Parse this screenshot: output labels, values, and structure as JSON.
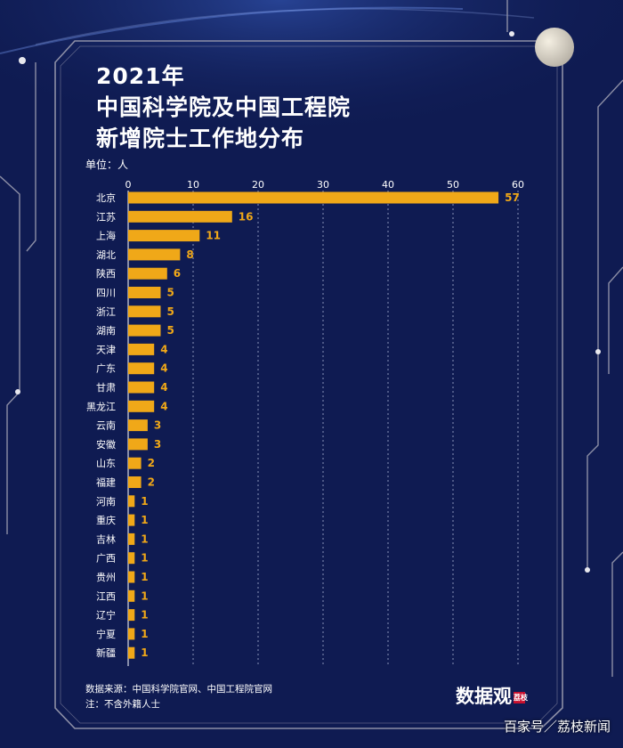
{
  "title_lines": [
    "2021年",
    "中国科学院及中国工程院",
    "新增院士工作地分布"
  ],
  "unit_label": "单位：人",
  "source_line": "数据来源：中国科学院官网、中国工程院官网",
  "note_line": "注：不含外籍人士",
  "logo": {
    "text": "数据观",
    "badge": "荔枝"
  },
  "watermark": "百家号／荔枝新闻",
  "colors": {
    "background": "#0f1b52",
    "bar": "#f0a818",
    "gridline": "#8a93b8",
    "text": "#ffffff",
    "frame": "#8d8fa6"
  },
  "chart_data": {
    "type": "bar",
    "orientation": "horizontal",
    "title": "2021年中国科学院及中国工程院新增院士工作地分布",
    "xlabel": "单位：人",
    "xlim": [
      0,
      60
    ],
    "xticks": [
      0,
      10,
      20,
      30,
      40,
      50,
      60
    ],
    "grid": true,
    "categories": [
      "北京",
      "江苏",
      "上海",
      "湖北",
      "陕西",
      "四川",
      "浙江",
      "湖南",
      "天津",
      "广东",
      "甘肃",
      "黑龙江",
      "云南",
      "安徽",
      "山东",
      "福建",
      "河南",
      "重庆",
      "吉林",
      "广西",
      "贵州",
      "江西",
      "辽宁",
      "宁夏",
      "新疆"
    ],
    "values": [
      57,
      16,
      11,
      8,
      6,
      5,
      5,
      5,
      4,
      4,
      4,
      4,
      3,
      3,
      2,
      2,
      1,
      1,
      1,
      1,
      1,
      1,
      1,
      1,
      1
    ]
  }
}
